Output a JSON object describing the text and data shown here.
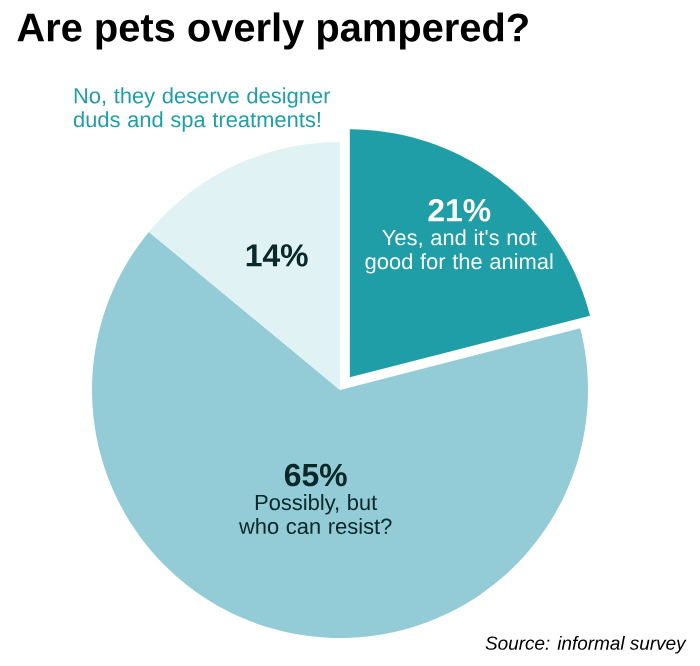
{
  "chart_data": {
    "type": "pie",
    "title": "Are pets overly pampered?",
    "categories": [
      "Yes, and it's not good for the animal",
      "Possibly, but who can resist?",
      "No, they deserve designer duds and spa treatments!"
    ],
    "values": [
      21,
      65,
      14
    ],
    "colors": [
      "#1f9ea8",
      "#93ccd6",
      "#e1f2f4"
    ],
    "value_labels": [
      "21%",
      "65%",
      "14%"
    ],
    "annotations": [
      "Source: informal survey"
    ]
  }
}
